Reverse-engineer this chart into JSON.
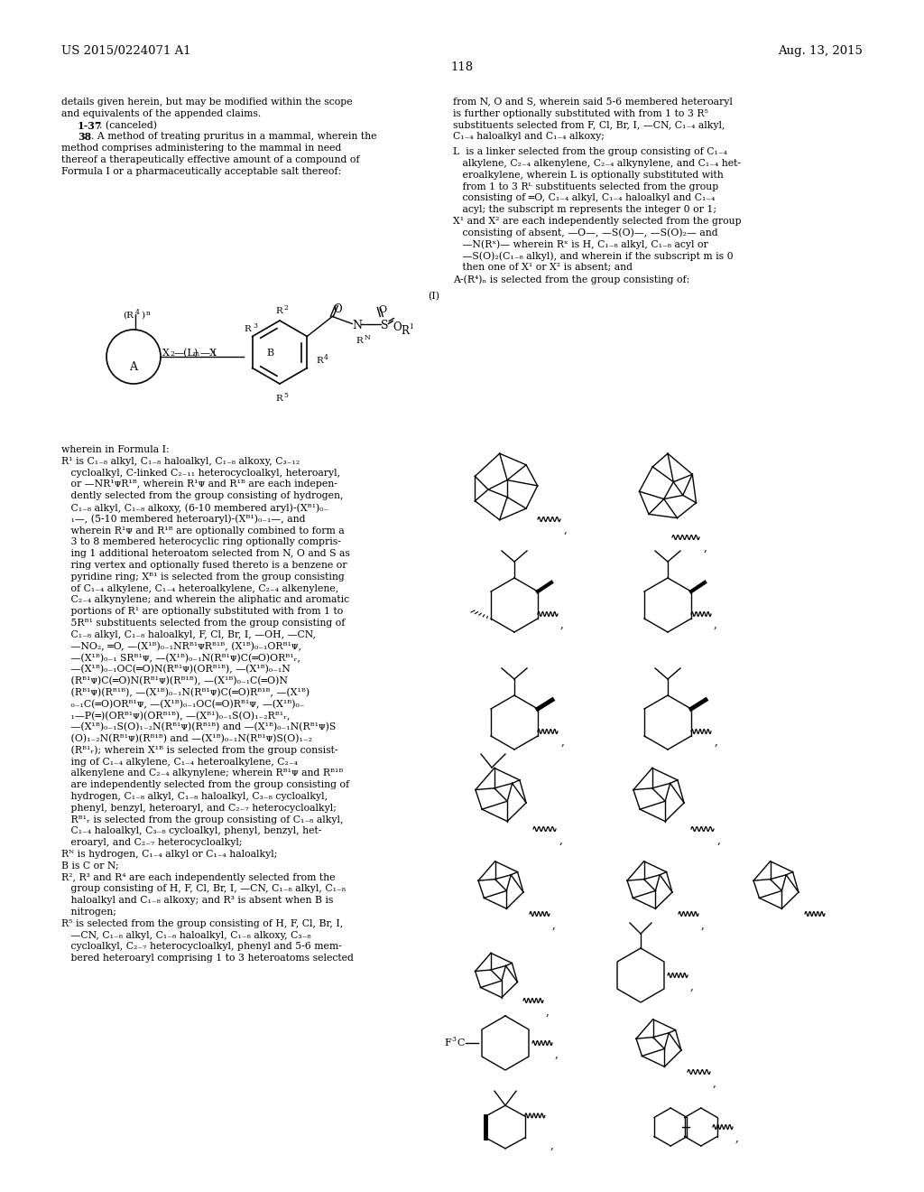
{
  "background_color": "#ffffff",
  "font_color": "#000000",
  "header_left": "US 2015/0224071 A1",
  "header_right": "Aug. 13, 2015",
  "page_number": "118"
}
